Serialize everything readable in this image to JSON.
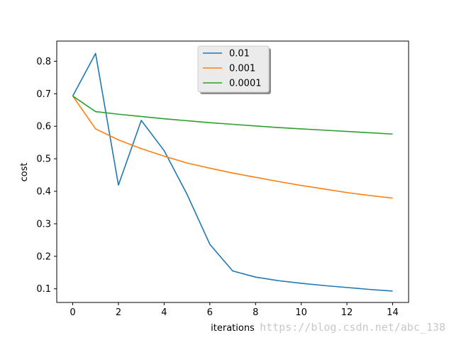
{
  "chart_data": {
    "type": "line",
    "title": "",
    "xlabel": "iterations",
    "ylabel": "cost",
    "xlim": [
      -0.7,
      14.7
    ],
    "ylim": [
      0.058,
      0.862
    ],
    "x_ticks": [
      0,
      2,
      4,
      6,
      8,
      10,
      12,
      14
    ],
    "y_ticks": [
      0.1,
      0.2,
      0.3,
      0.4,
      0.5,
      0.6,
      0.7,
      0.8
    ],
    "x_tick_labels": [
      "0",
      "2",
      "4",
      "6",
      "8",
      "10",
      "12",
      "14"
    ],
    "y_tick_labels": [
      "0.1",
      "0.2",
      "0.3",
      "0.4",
      "0.5",
      "0.6",
      "0.7",
      "0.8"
    ],
    "grid": false,
    "legend_position": "upper center",
    "x": [
      0,
      1,
      2,
      3,
      4,
      5,
      6,
      7,
      8,
      9,
      10,
      11,
      12,
      13,
      14
    ],
    "series": [
      {
        "name": "0.01",
        "color": "#1f77b4",
        "values": [
          0.693,
          0.824,
          0.419,
          0.618,
          0.525,
          0.391,
          0.237,
          0.155,
          0.136,
          0.125,
          0.117,
          0.11,
          0.104,
          0.098,
          0.093
        ]
      },
      {
        "name": "0.001",
        "color": "#ff7f0e",
        "values": [
          0.693,
          0.592,
          0.558,
          0.531,
          0.508,
          0.487,
          0.471,
          0.456,
          0.443,
          0.43,
          0.418,
          0.407,
          0.396,
          0.387,
          0.379
        ]
      },
      {
        "name": "0.0001",
        "color": "#2ca02c",
        "values": [
          0.693,
          0.645,
          0.637,
          0.63,
          0.623,
          0.617,
          0.611,
          0.606,
          0.601,
          0.596,
          0.592,
          0.588,
          0.584,
          0.58,
          0.576
        ]
      }
    ]
  },
  "watermark": "https://blog.csdn.net/abc_138"
}
